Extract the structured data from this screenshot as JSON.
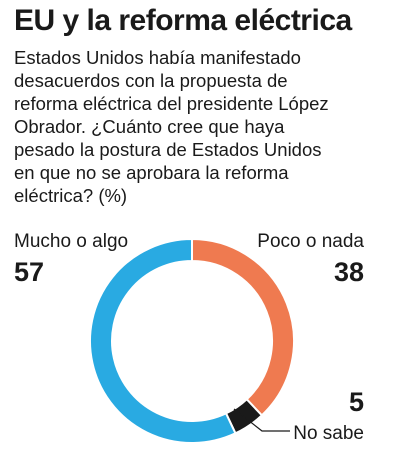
{
  "title": "EU y la reforma eléctrica",
  "question_lines": [
    "Estados Unidos había manifestado",
    "desacuerdos con la propuesta de",
    "reforma eléctrica del presidente López",
    "Obrador. ¿Cuánto cree que haya",
    "pesado la postura de Estados Unidos",
    "en que no se aprobara la reforma",
    "eléctrica? (%)"
  ],
  "chart_data": {
    "type": "pie",
    "style": "donut",
    "categories": [
      "Mucho o algo",
      "Poco o nada",
      "No sabe"
    ],
    "values": [
      57,
      38,
      5
    ],
    "value_labels": [
      "57",
      "38",
      "5"
    ],
    "colors": [
      "#29aae2",
      "#ef7a50",
      "#1a1a1a"
    ],
    "unit": "%"
  }
}
